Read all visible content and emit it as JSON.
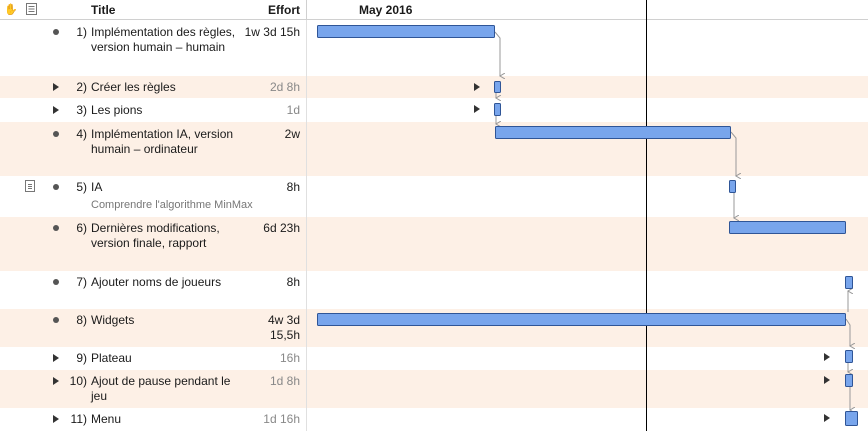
{
  "header": {
    "title": "Title",
    "effort": "Effort",
    "month": "May 2016"
  },
  "tasks": [
    {
      "num": "1)",
      "title": "Implémentation des règles, version humain – humain",
      "effort": "1w 3d 15h",
      "kind": "group"
    },
    {
      "num": "2)",
      "title": "Créer les règles",
      "effort": "2d 8h",
      "kind": "task"
    },
    {
      "num": "3)",
      "title": "Les pions",
      "effort": "1d",
      "kind": "task"
    },
    {
      "num": "4)",
      "title": "Implémentation IA, version humain – ordinateur",
      "effort": "2w",
      "kind": "group"
    },
    {
      "num": "5)",
      "title": "IA",
      "effort": "8h",
      "kind": "note",
      "note": "Comprendre l'algorithme MinMax"
    },
    {
      "num": "6)",
      "title": "Dernières modifications, version finale, rapport",
      "effort": "6d 23h",
      "kind": "group"
    },
    {
      "num": "7)",
      "title": "Ajouter noms de joueurs",
      "effort": "8h",
      "kind": "group"
    },
    {
      "num": "8)",
      "title": "Widgets",
      "effort": "4w 3d 15,5h",
      "kind": "group"
    },
    {
      "num": "9)",
      "title": "Plateau",
      "effort": "16h",
      "kind": "task"
    },
    {
      "num": "10)",
      "title": "Ajout de pause pendant le jeu",
      "effort": "1d 8h",
      "kind": "task"
    },
    {
      "num": "11)",
      "title": "Menu",
      "effort": "1d 16h",
      "kind": "task"
    }
  ],
  "colors": {
    "bar_fill": "#78a5ec",
    "bar_border": "#2f5597",
    "row_alt": "#fdf0e6",
    "today_line": "#000000"
  }
}
